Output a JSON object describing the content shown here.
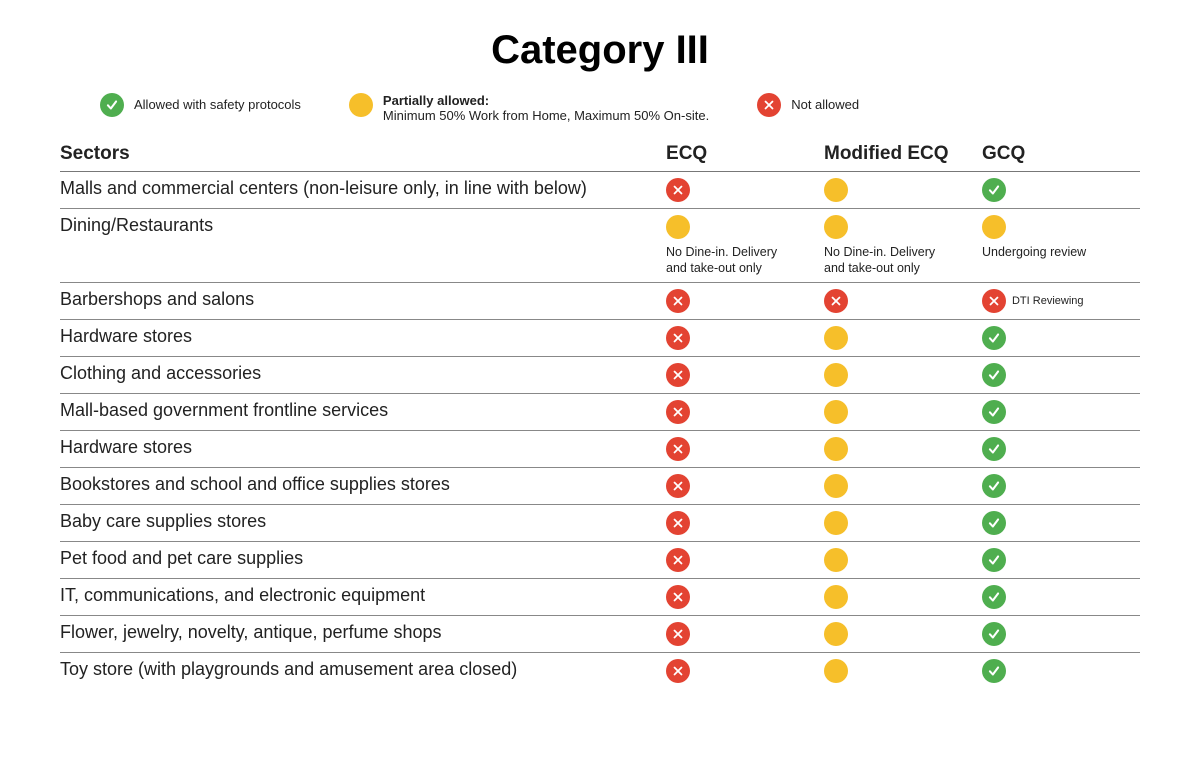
{
  "title": "Category III",
  "colors": {
    "allowed": "#4fae4f",
    "partial": "#f6bf2a",
    "not_allowed": "#e34332",
    "glyph": "#ffffff",
    "text": "#222222",
    "rule": "#888888",
    "background": "#ffffff"
  },
  "legend": {
    "allowed_label": "Allowed with safety protocols",
    "partial_heading": "Partially allowed:",
    "partial_sub": "Minimum 50% Work from Home,  Maximum 50% On-site.",
    "not_allowed_label": "Not allowed"
  },
  "columns": {
    "sector": "Sectors",
    "ecq": "ECQ",
    "mecq": "Modified ECQ",
    "gcq": "GCQ"
  },
  "typography": {
    "title_fontsize": 40,
    "header_fontsize": 19,
    "row_fontsize": 18,
    "legend_fontsize": 13,
    "note_fontsize": 12.5,
    "font_family_title": "Arial",
    "font_family_body": "Verdana"
  },
  "status_types": {
    "allowed": {
      "color": "#4fae4f",
      "glyph": "check"
    },
    "partial": {
      "color": "#f6bf2a",
      "glyph": "none"
    },
    "not": {
      "color": "#e34332",
      "glyph": "cross"
    }
  },
  "rows": [
    {
      "sector": "Malls and commercial centers (non-leisure only, in line with below)",
      "ecq": {
        "status": "not"
      },
      "mecq": {
        "status": "partial"
      },
      "gcq": {
        "status": "allowed"
      }
    },
    {
      "sector": "Dining/Restaurants",
      "ecq": {
        "status": "partial",
        "note": "No Dine-in. Delivery and take-out only"
      },
      "mecq": {
        "status": "partial",
        "note": "No Dine-in. Delivery and take-out only"
      },
      "gcq": {
        "status": "partial",
        "note": "Undergoing review"
      }
    },
    {
      "sector": "Barbershops and salons",
      "ecq": {
        "status": "not"
      },
      "mecq": {
        "status": "not"
      },
      "gcq": {
        "status": "not",
        "side": "DTI Reviewing"
      }
    },
    {
      "sector": "Hardware stores",
      "ecq": {
        "status": "not"
      },
      "mecq": {
        "status": "partial"
      },
      "gcq": {
        "status": "allowed"
      }
    },
    {
      "sector": "Clothing and accessories",
      "ecq": {
        "status": "not"
      },
      "mecq": {
        "status": "partial"
      },
      "gcq": {
        "status": "allowed"
      }
    },
    {
      "sector": "Mall-based government frontline services",
      "ecq": {
        "status": "not"
      },
      "mecq": {
        "status": "partial"
      },
      "gcq": {
        "status": "allowed"
      }
    },
    {
      "sector": "Hardware stores",
      "ecq": {
        "status": "not"
      },
      "mecq": {
        "status": "partial"
      },
      "gcq": {
        "status": "allowed"
      }
    },
    {
      "sector": "Bookstores and school and office supplies stores",
      "ecq": {
        "status": "not"
      },
      "mecq": {
        "status": "partial"
      },
      "gcq": {
        "status": "allowed"
      }
    },
    {
      "sector": "Baby care supplies stores",
      "ecq": {
        "status": "not"
      },
      "mecq": {
        "status": "partial"
      },
      "gcq": {
        "status": "allowed"
      }
    },
    {
      "sector": "Pet food and pet care supplies",
      "ecq": {
        "status": "not"
      },
      "mecq": {
        "status": "partial"
      },
      "gcq": {
        "status": "allowed"
      }
    },
    {
      "sector": "IT, communications, and electronic equipment",
      "ecq": {
        "status": "not"
      },
      "mecq": {
        "status": "partial"
      },
      "gcq": {
        "status": "allowed"
      }
    },
    {
      "sector": "Flower, jewelry, novelty, antique, perfume shops",
      "ecq": {
        "status": "not"
      },
      "mecq": {
        "status": "partial"
      },
      "gcq": {
        "status": "allowed"
      }
    },
    {
      "sector": "Toy store (with playgrounds and amusement area closed)",
      "ecq": {
        "status": "not"
      },
      "mecq": {
        "status": "partial"
      },
      "gcq": {
        "status": "allowed"
      }
    }
  ]
}
